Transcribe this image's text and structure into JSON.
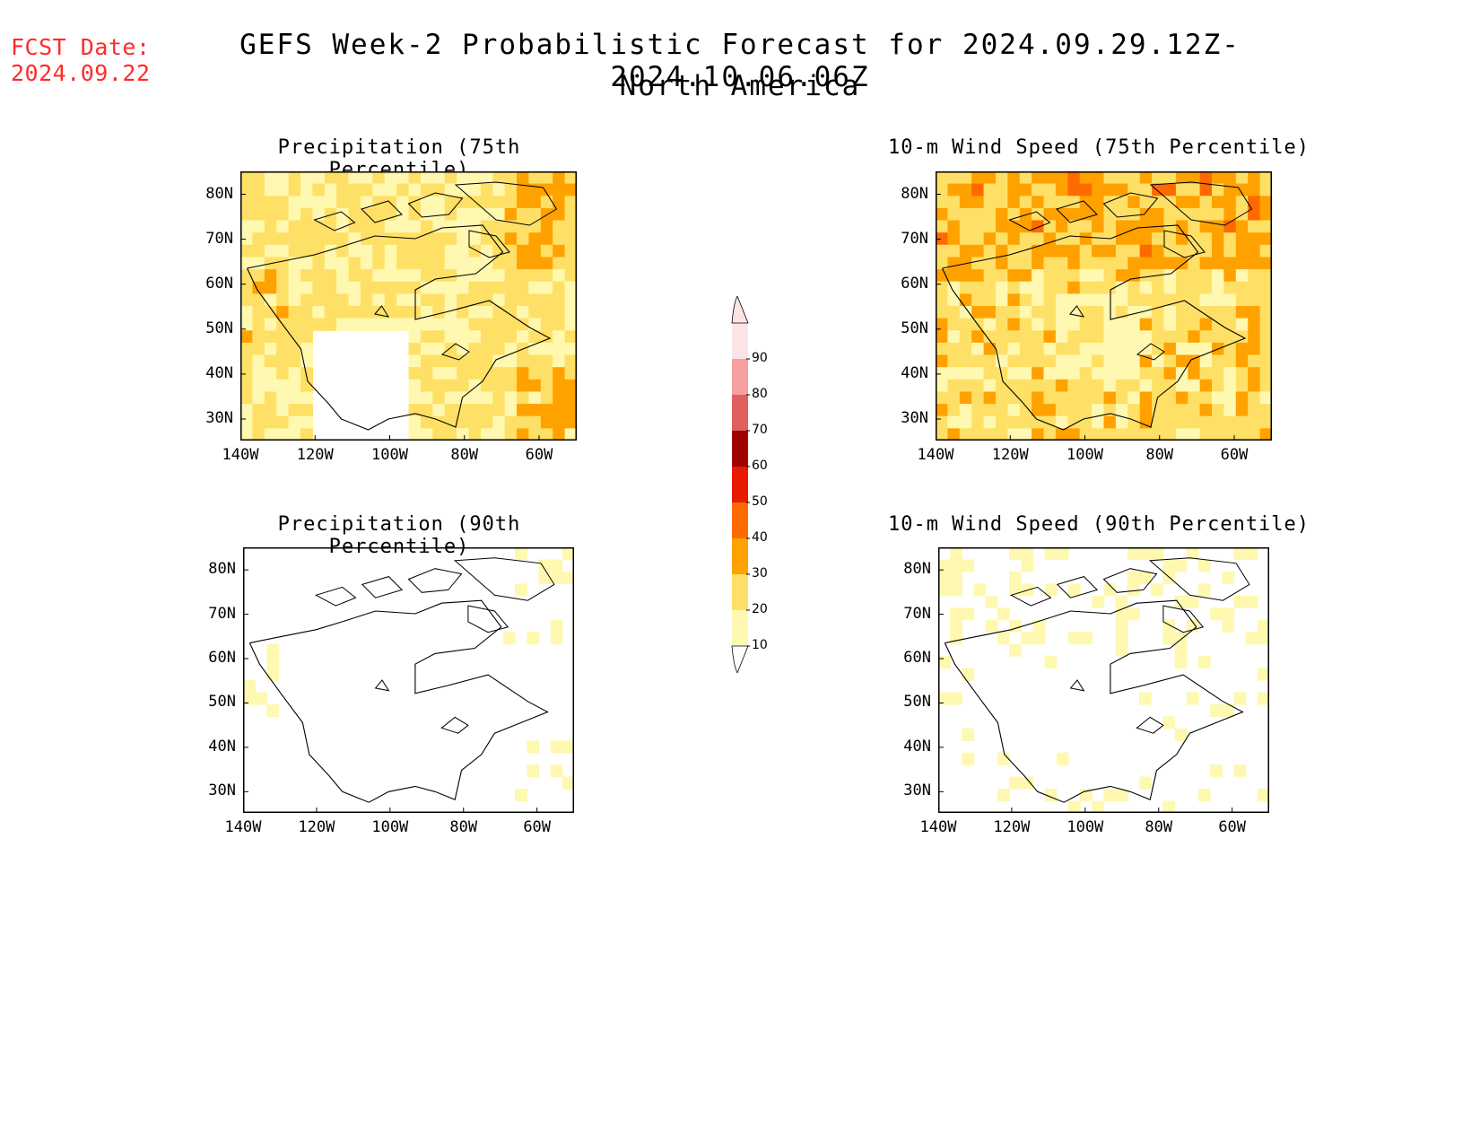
{
  "header": {
    "fcst_label": "FCST Date:",
    "fcst_date": "2024.09.22",
    "title": "GEFS Week-2 Probabilistic Forecast for 2024.09.29.12Z-2024.10.06.06Z",
    "region": "North America"
  },
  "axes": {
    "lat_labels": [
      "80N",
      "70N",
      "60N",
      "50N",
      "40N",
      "30N"
    ],
    "lon_labels": [
      "140W",
      "120W",
      "100W",
      "80W",
      "60W"
    ]
  },
  "panels": [
    {
      "title": "Precipitation (75th Percentile)",
      "intensity": 2.6
    },
    {
      "title": "10-m Wind Speed (75th Percentile)",
      "intensity": 3.0
    },
    {
      "title": "Precipitation (90th Percentile)",
      "intensity": 0.9
    },
    {
      "title": "10-m Wind Speed (90th Percentile)",
      "intensity": 1.0
    }
  ],
  "colorbar": {
    "levels": [
      "10",
      "20",
      "30",
      "40",
      "50",
      "60",
      "70",
      "80",
      "90"
    ],
    "colors": [
      "#ffffff",
      "#fff8b0",
      "#ffe066",
      "#ffa200",
      "#ff6a00",
      "#e81a00",
      "#a00000",
      "#e06060",
      "#f4a0a0",
      "#fde4e4"
    ]
  },
  "colors": {
    "fcst_text": "#ff2a2a",
    "coastline": "#000000"
  }
}
